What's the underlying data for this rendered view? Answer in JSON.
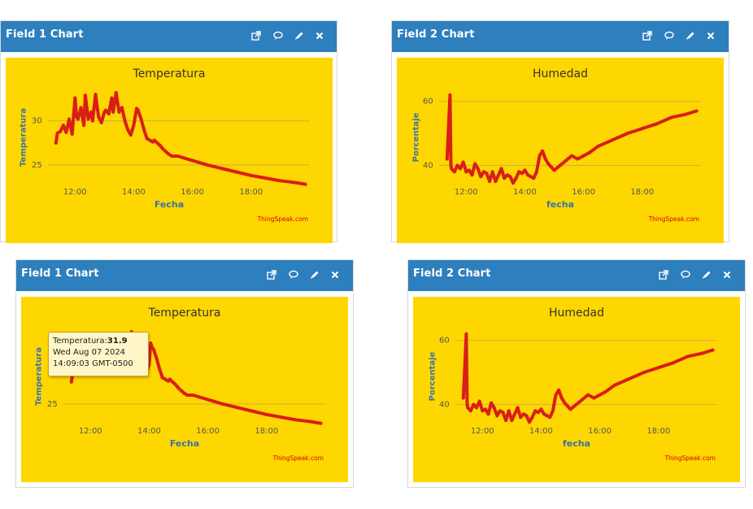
{
  "widgets": [
    {
      "header": "Field 1 Chart",
      "title": "Temperatura",
      "xlabel": "Fecha",
      "ylabel": "Temperatura",
      "credit": "ThingSpeak.com",
      "tooltip": null
    },
    {
      "header": "Field 2 Chart",
      "title": "Humedad",
      "xlabel": "fecha",
      "ylabel": "Porcentaje",
      "credit": "ThingSpeak.com",
      "tooltip": null
    },
    {
      "header": "Field 1 Chart",
      "title": "Temperatura",
      "xlabel": "Fecha",
      "ylabel": "Temperatura",
      "credit": "ThingSpeak.com",
      "tooltip": {
        "label": "Temperatura:",
        "value": "31.9",
        "date": "Wed Aug 07 2024",
        "time": "14:09:03 GMT-0500"
      }
    },
    {
      "header": "Field 2 Chart",
      "title": "Humedad",
      "xlabel": "fecha",
      "ylabel": "Porcentaje",
      "credit": "ThingSpeak.com",
      "tooltip": null
    }
  ],
  "header_icons": [
    "open-external-icon",
    "comment-icon",
    "edit-pencil-icon",
    "close-icon"
  ],
  "colors": {
    "header": "#2e7fbe",
    "plot_background": "#ffd700",
    "series": "#d91e18",
    "axis_title": "#3b73a8",
    "credit": "#cc0000"
  },
  "chart_data": [
    {
      "type": "line",
      "title": "Temperatura",
      "xlabel": "Fecha",
      "ylabel": "Temperatura",
      "x_ticks": [
        "12:00",
        "14:00",
        "16:00",
        "18:00"
      ],
      "y_ticks": [
        25,
        30
      ],
      "xlim": [
        11.3,
        20.0
      ],
      "ylim": [
        22.4,
        34.4
      ],
      "grid": true,
      "series": [
        {
          "color": "#d91e18",
          "x": [
            11.35,
            11.4,
            11.5,
            11.6,
            11.7,
            11.8,
            11.9,
            12.0,
            12.05,
            12.1,
            12.2,
            12.3,
            12.35,
            12.45,
            12.55,
            12.6,
            12.7,
            12.8,
            12.9,
            13.0,
            13.05,
            13.15,
            13.25,
            13.3,
            13.4,
            13.5,
            13.6,
            13.7,
            13.8,
            13.9,
            14.0,
            14.05,
            14.1,
            14.15,
            14.25,
            14.35,
            14.45,
            14.55,
            14.65,
            14.7,
            14.8,
            14.9,
            15.0,
            15.1,
            15.2,
            15.3,
            15.5,
            15.7,
            16.0,
            16.2,
            16.5,
            17.0,
            17.5,
            18.0,
            18.5,
            19.0,
            19.5,
            19.85
          ],
          "y": [
            27.5,
            28.6,
            28.8,
            29.5,
            28.7,
            30.2,
            28.5,
            32.6,
            30.5,
            30.2,
            31.5,
            29.5,
            32.9,
            30.2,
            31.0,
            30.0,
            33.0,
            30.5,
            29.8,
            31.0,
            31.2,
            30.8,
            32.6,
            31.0,
            33.2,
            31.0,
            31.5,
            30.0,
            29.0,
            28.4,
            29.5,
            30.5,
            31.4,
            31.2,
            30.2,
            29.0,
            28.0,
            27.8,
            27.6,
            27.8,
            27.5,
            27.2,
            26.8,
            26.5,
            26.2,
            26.0,
            26.0,
            25.8,
            25.5,
            25.3,
            25.0,
            24.6,
            24.2,
            23.8,
            23.5,
            23.2,
            23.0,
            22.8
          ]
        }
      ]
    },
    {
      "type": "line",
      "title": "Humedad",
      "xlabel": "fecha",
      "ylabel": "Porcentaje",
      "x_ticks": [
        "12:00",
        "14:00",
        "16:00",
        "18:00"
      ],
      "y_ticks": [
        40,
        60
      ],
      "xlim": [
        11.3,
        20.0
      ],
      "ylim": [
        33.0,
        66.0
      ],
      "grid": true,
      "series": [
        {
          "color": "#d91e18",
          "x": [
            11.35,
            11.45,
            11.48,
            11.5,
            11.6,
            11.7,
            11.8,
            11.9,
            12.0,
            12.1,
            12.2,
            12.3,
            12.4,
            12.5,
            12.6,
            12.7,
            12.8,
            12.9,
            13.0,
            13.1,
            13.2,
            13.3,
            13.4,
            13.5,
            13.6,
            13.7,
            13.8,
            13.9,
            14.0,
            14.1,
            14.2,
            14.3,
            14.4,
            14.5,
            14.6,
            14.7,
            14.8,
            14.9,
            15.0,
            15.2,
            15.4,
            15.6,
            15.8,
            16.0,
            16.2,
            16.5,
            17.0,
            17.5,
            18.0,
            18.5,
            19.0,
            19.5,
            19.85
          ],
          "y": [
            42.0,
            62.0,
            40.0,
            39.0,
            38.0,
            40.0,
            39.0,
            41.0,
            38.0,
            38.5,
            37.0,
            40.5,
            39.0,
            36.5,
            38.0,
            37.5,
            35.0,
            38.0,
            35.0,
            37.0,
            39.0,
            36.0,
            37.0,
            36.5,
            34.5,
            36.0,
            38.0,
            37.5,
            38.5,
            37.0,
            36.5,
            36.0,
            38.0,
            43.0,
            44.5,
            42.0,
            40.5,
            39.5,
            38.5,
            40.0,
            41.5,
            43.0,
            42.0,
            43.0,
            44.0,
            46.0,
            48.0,
            50.0,
            51.5,
            53.0,
            55.0,
            56.0,
            57.0
          ]
        }
      ]
    },
    {
      "type": "line",
      "title": "Temperatura",
      "xlabel": "Fecha",
      "ylabel": "Temperatura",
      "x_ticks": [
        "12:00",
        "14:00",
        "16:00",
        "18:00"
      ],
      "y_ticks": [
        25
      ],
      "xlim": [
        11.3,
        20.0
      ],
      "ylim": [
        22.4,
        34.4
      ],
      "grid": true,
      "series": [
        {
          "color": "#d91e18",
          "x": [
            11.35,
            11.4,
            11.5,
            11.6,
            11.7,
            11.8,
            11.9,
            12.0,
            12.05,
            12.1,
            12.2,
            12.3,
            12.35,
            12.45,
            12.55,
            12.6,
            12.7,
            12.8,
            12.9,
            13.0,
            13.05,
            13.15,
            13.25,
            13.3,
            13.4,
            13.5,
            13.6,
            13.7,
            13.8,
            13.9,
            14.0,
            14.05,
            14.1,
            14.15,
            14.25,
            14.35,
            14.45,
            14.55,
            14.65,
            14.7,
            14.8,
            14.9,
            15.0,
            15.1,
            15.2,
            15.3,
            15.5,
            15.7,
            16.0,
            16.2,
            16.5,
            17.0,
            17.5,
            18.0,
            18.5,
            19.0,
            19.5,
            19.85
          ],
          "y": [
            27.5,
            28.6,
            28.8,
            29.5,
            28.7,
            30.2,
            28.5,
            32.6,
            30.5,
            30.2,
            31.5,
            29.5,
            32.9,
            30.2,
            31.0,
            30.0,
            33.0,
            30.5,
            29.8,
            31.0,
            31.2,
            30.8,
            32.6,
            31.0,
            33.2,
            31.0,
            31.5,
            30.0,
            29.0,
            28.4,
            29.5,
            31.9,
            31.4,
            31.2,
            30.2,
            29.0,
            28.0,
            27.8,
            27.6,
            27.8,
            27.5,
            27.2,
            26.8,
            26.5,
            26.2,
            26.0,
            26.0,
            25.8,
            25.5,
            25.3,
            25.0,
            24.6,
            24.2,
            23.8,
            23.5,
            23.2,
            23.0,
            22.8
          ]
        }
      ]
    },
    {
      "type": "line",
      "title": "Humedad",
      "xlabel": "fecha",
      "ylabel": "Porcentaje",
      "x_ticks": [
        "12:00",
        "14:00",
        "16:00",
        "18:00"
      ],
      "y_ticks": [
        40,
        60
      ],
      "xlim": [
        11.3,
        20.0
      ],
      "ylim": [
        33.0,
        66.0
      ],
      "grid": true,
      "series": [
        {
          "color": "#d91e18",
          "x": [
            11.35,
            11.45,
            11.48,
            11.5,
            11.6,
            11.7,
            11.8,
            11.9,
            12.0,
            12.1,
            12.2,
            12.3,
            12.4,
            12.5,
            12.6,
            12.7,
            12.8,
            12.9,
            13.0,
            13.1,
            13.2,
            13.3,
            13.4,
            13.5,
            13.6,
            13.7,
            13.8,
            13.9,
            14.0,
            14.1,
            14.2,
            14.3,
            14.4,
            14.5,
            14.6,
            14.7,
            14.8,
            14.9,
            15.0,
            15.2,
            15.4,
            15.6,
            15.8,
            16.0,
            16.2,
            16.5,
            17.0,
            17.5,
            18.0,
            18.5,
            19.0,
            19.5,
            19.85
          ],
          "y": [
            42.0,
            62.0,
            40.0,
            39.0,
            38.0,
            40.0,
            39.0,
            41.0,
            38.0,
            38.5,
            37.0,
            40.5,
            39.0,
            36.5,
            38.0,
            37.5,
            35.0,
            38.0,
            35.0,
            37.0,
            39.0,
            36.0,
            37.0,
            36.5,
            34.5,
            36.0,
            38.0,
            37.5,
            38.5,
            37.0,
            36.5,
            36.0,
            38.0,
            43.0,
            44.5,
            42.0,
            40.5,
            39.5,
            38.5,
            40.0,
            41.5,
            43.0,
            42.0,
            43.0,
            44.0,
            46.0,
            48.0,
            50.0,
            51.5,
            53.0,
            55.0,
            56.0,
            57.0
          ]
        }
      ]
    }
  ]
}
